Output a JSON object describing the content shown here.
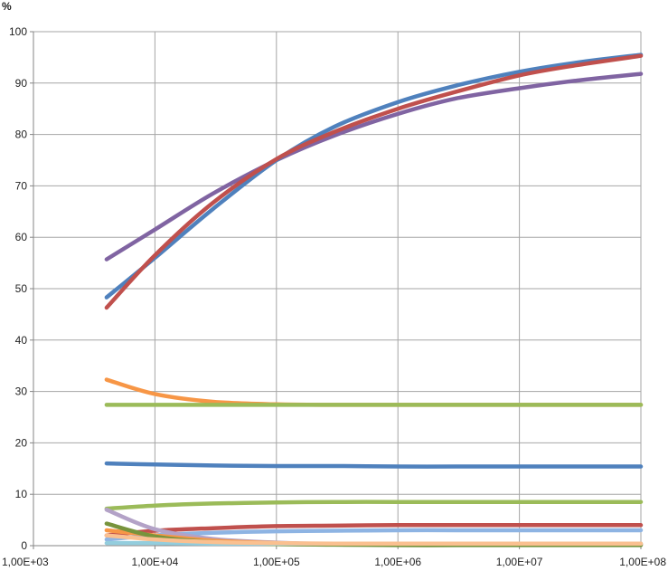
{
  "chart_data": {
    "type": "line",
    "title": "",
    "xlabel": "",
    "ylabel": "%",
    "x_scale": "log",
    "xlim": [
      1000,
      100000000
    ],
    "ylim": [
      0,
      100
    ],
    "x_ticks": [
      1000,
      10000,
      100000,
      1000000,
      10000000,
      100000000
    ],
    "x_tick_labels": [
      "1,00E+03",
      "1,00E+04",
      "1,00E+05",
      "1,00E+06",
      "1,00E+07",
      "1,00E+08"
    ],
    "y_ticks": [
      0,
      10,
      20,
      30,
      40,
      50,
      60,
      70,
      80,
      90,
      100
    ],
    "y_tick_labels": [
      "0",
      "10",
      "20",
      "30",
      "40",
      "50",
      "60",
      "70",
      "80",
      "90",
      "100"
    ],
    "grid": true,
    "legend": "none",
    "x": [
      4000,
      10000,
      30000,
      100000,
      300000,
      1000000,
      3000000,
      10000000,
      30000000,
      100000000
    ],
    "series": [
      {
        "color": "#8064a2",
        "values": [
          55.7,
          61.5,
          68.5,
          75.0,
          79.8,
          84.0,
          87.0,
          89.0,
          90.5,
          91.8
        ]
      },
      {
        "color": "#4f81bd",
        "values": [
          48.3,
          56.0,
          65.5,
          75.0,
          81.5,
          86.3,
          89.5,
          92.2,
          94.0,
          95.5
        ]
      },
      {
        "color": "#c0504d",
        "values": [
          46.3,
          56.5,
          66.7,
          75.2,
          80.5,
          85.0,
          88.3,
          91.5,
          93.5,
          95.3
        ]
      },
      {
        "color": "#f79646",
        "values": [
          32.3,
          29.5,
          28.0,
          27.5,
          27.4,
          27.4,
          27.4,
          27.4,
          27.4,
          27.4
        ]
      },
      {
        "color": "#9bbb59",
        "values": [
          27.4,
          27.4,
          27.4,
          27.4,
          27.4,
          27.4,
          27.4,
          27.4,
          27.4,
          27.4
        ]
      },
      {
        "color": "#4f81bd",
        "values": [
          16.0,
          15.8,
          15.6,
          15.5,
          15.5,
          15.4,
          15.4,
          15.4,
          15.4,
          15.4
        ]
      },
      {
        "color": "#9bbb59",
        "values": [
          7.2,
          7.8,
          8.2,
          8.4,
          8.5,
          8.5,
          8.5,
          8.5,
          8.5,
          8.5
        ]
      },
      {
        "color": "#c0504d",
        "values": [
          2.0,
          2.9,
          3.4,
          3.8,
          3.9,
          4.0,
          4.0,
          4.0,
          4.0,
          4.0
        ]
      },
      {
        "color": "#8eb4e3",
        "values": [
          1.2,
          2.0,
          2.5,
          2.8,
          2.9,
          3.0,
          3.0,
          3.0,
          3.0,
          3.0
        ]
      },
      {
        "color": "#b3a2c7",
        "values": [
          7.0,
          3.2,
          1.3,
          0.6,
          0.3,
          0.2,
          0.2,
          0.2,
          0.2,
          0.2
        ]
      },
      {
        "color": "#f79646",
        "values": [
          3.0,
          2.0,
          1.0,
          0.5,
          0.3,
          0.3,
          0.3,
          0.3,
          0.3,
          0.3
        ]
      },
      {
        "color": "#77933c",
        "values": [
          4.3,
          1.8,
          0.7,
          0.3,
          0.2,
          0.1,
          0.1,
          0.1,
          0.1,
          0.1
        ]
      },
      {
        "color": "#93cddd",
        "values": [
          0.5,
          0.5,
          0.4,
          0.4,
          0.4,
          0.4,
          0.4,
          0.4,
          0.4,
          0.4
        ]
      },
      {
        "color": "#fac090",
        "values": [
          2.0,
          1.2,
          0.7,
          0.5,
          0.4,
          0.4,
          0.4,
          0.4,
          0.4,
          0.4
        ]
      }
    ]
  }
}
